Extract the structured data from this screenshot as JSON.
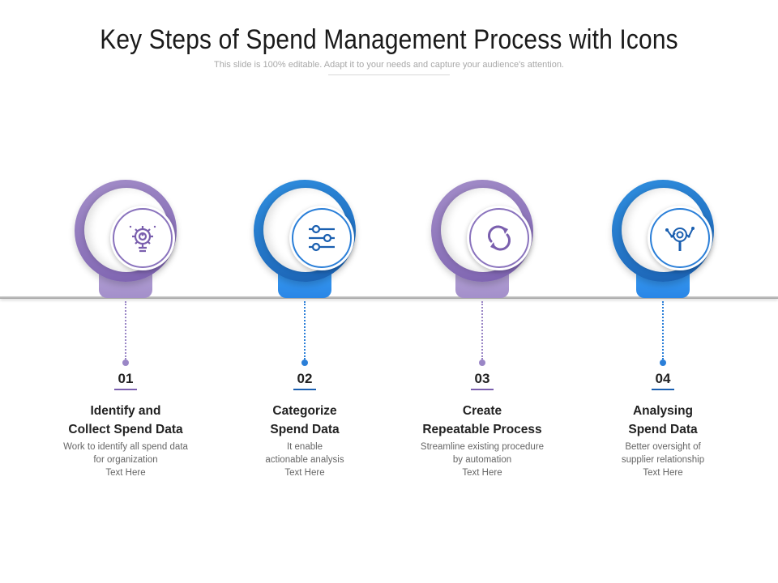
{
  "title": "Key Steps of Spend Management Process with Icons",
  "subtitle": "This slide is 100% editable. Adapt it to your needs and capture your audience's attention.",
  "colors": {
    "purple": "#8a73bd",
    "blue": "#2b7fd8"
  },
  "steps": [
    {
      "number": "01",
      "heading": "Identify and\nCollect Spend Data",
      "description": "Work to identify all spend data\nfor organization\nText Here",
      "icon": "gear-bulb-icon",
      "theme": "purple"
    },
    {
      "number": "02",
      "heading": "Categorize\nSpend Data",
      "description": "It enable\nactionable analysis\nText Here",
      "icon": "sliders-icon",
      "theme": "blue"
    },
    {
      "number": "03",
      "heading": "Create\nRepeatable Process",
      "description": "Streamline existing procedure\nby automation\nText Here",
      "icon": "refresh-cycle-icon",
      "theme": "purple"
    },
    {
      "number": "04",
      "heading": "Analysing\nSpend Data",
      "description": "Better oversight of\nsupplier relationship\nText Here",
      "icon": "magnifier-network-icon",
      "theme": "blue"
    }
  ]
}
